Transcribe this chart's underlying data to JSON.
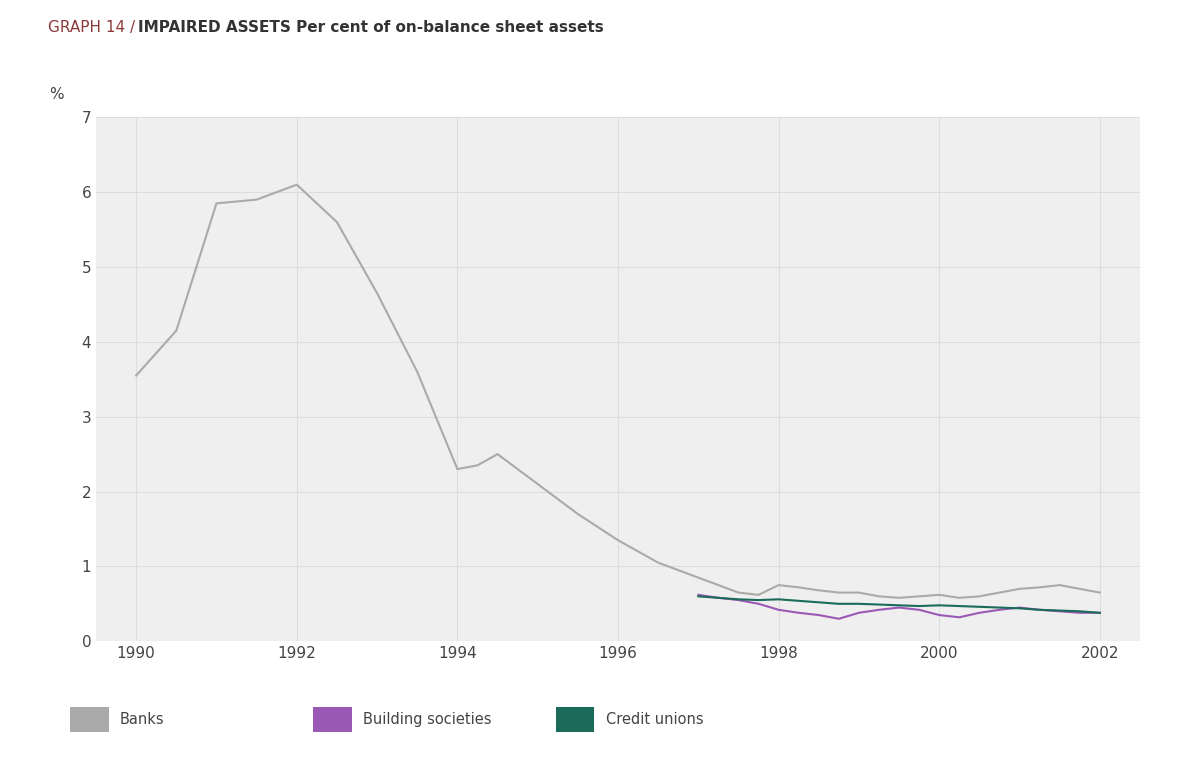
{
  "title_left": "GRAPH 14 / ",
  "title_right": "IMPAIRED ASSETS Per cent of on-balance sheet assets",
  "ylabel": "%",
  "xlim": [
    1989.5,
    2002.5
  ],
  "ylim": [
    0,
    7
  ],
  "yticks": [
    0,
    1,
    2,
    3,
    4,
    5,
    6,
    7
  ],
  "xticks": [
    1990,
    1992,
    1994,
    1996,
    1998,
    2000,
    2002
  ],
  "background_color": "#f0efef",
  "outer_background": "#ffffff",
  "banks": {
    "x": [
      1990,
      1990.5,
      1991,
      1991.5,
      1992,
      1992.5,
      1993,
      1993.5,
      1994,
      1994.25,
      1994.5,
      1995,
      1995.5,
      1996,
      1996.5,
      1997,
      1997.25,
      1997.5,
      1997.75,
      1998,
      1998.25,
      1998.5,
      1998.75,
      1999,
      1999.25,
      1999.5,
      1999.75,
      2000,
      2000.25,
      2000.5,
      2000.75,
      2001,
      2001.25,
      2001.5,
      2001.75,
      2002
    ],
    "y": [
      3.55,
      4.15,
      5.85,
      5.9,
      6.1,
      5.6,
      4.65,
      3.6,
      2.3,
      2.35,
      2.5,
      2.1,
      1.7,
      1.35,
      1.05,
      0.85,
      0.75,
      0.65,
      0.62,
      0.75,
      0.72,
      0.68,
      0.65,
      0.65,
      0.6,
      0.58,
      0.6,
      0.62,
      0.58,
      0.6,
      0.65,
      0.7,
      0.72,
      0.75,
      0.7,
      0.65
    ],
    "color": "#aaaaaa",
    "linewidth": 1.5,
    "label": "Banks"
  },
  "building_societies": {
    "x": [
      1997,
      1997.25,
      1997.5,
      1997.75,
      1998,
      1998.25,
      1998.5,
      1998.75,
      1999,
      1999.25,
      1999.5,
      1999.75,
      2000,
      2000.25,
      2000.5,
      2000.75,
      2001,
      2001.25,
      2001.5,
      2001.75,
      2002
    ],
    "y": [
      0.62,
      0.58,
      0.55,
      0.5,
      0.42,
      0.38,
      0.35,
      0.3,
      0.38,
      0.42,
      0.45,
      0.42,
      0.35,
      0.32,
      0.38,
      0.42,
      0.45,
      0.42,
      0.4,
      0.38,
      0.38
    ],
    "color": "#9b59b6",
    "linewidth": 1.5,
    "label": "Building societies"
  },
  "credit_unions": {
    "x": [
      1997,
      1997.25,
      1997.5,
      1997.75,
      1998,
      1998.25,
      1998.5,
      1998.75,
      1999,
      1999.25,
      1999.5,
      1999.75,
      2000,
      2000.25,
      2000.5,
      2000.75,
      2001,
      2001.25,
      2001.5,
      2001.75,
      2002
    ],
    "y": [
      0.6,
      0.58,
      0.56,
      0.55,
      0.56,
      0.54,
      0.52,
      0.5,
      0.5,
      0.49,
      0.48,
      0.47,
      0.48,
      0.47,
      0.46,
      0.45,
      0.44,
      0.42,
      0.41,
      0.4,
      0.38
    ],
    "color": "#1a6b5a",
    "linewidth": 1.5,
    "label": "Credit unions"
  },
  "legend_items": [
    {
      "label": "Banks",
      "color": "#aaaaaa"
    },
    {
      "label": "Building societies",
      "color": "#9b59b6"
    },
    {
      "label": "Credit unions",
      "color": "#1a6b5a"
    }
  ]
}
